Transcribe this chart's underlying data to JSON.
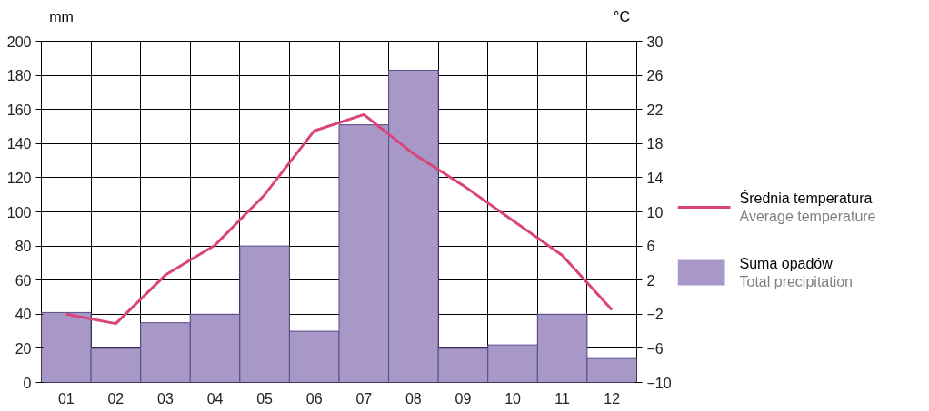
{
  "chart_data": {
    "type": "bar",
    "ylabel": "mm",
    "y2label": "°C",
    "categories": [
      "01",
      "02",
      "03",
      "04",
      "05",
      "06",
      "07",
      "08",
      "09",
      "10",
      "11",
      "12"
    ],
    "series": [
      {
        "name": "Suma opadów\nTotal precipitation",
        "color": "#a898c8",
        "values": [
          41,
          20,
          35,
          40,
          80,
          30,
          151,
          183,
          20,
          22,
          40,
          14
        ]
      },
      {
        "name": "Średnia temperatura\nAverage temperature",
        "type": "line",
        "axis": "y2",
        "color": "#d9457a",
        "values": [
          -2,
          -3.1,
          2.6,
          6.1,
          12,
          19.5,
          21.4,
          16.8,
          13.1,
          9,
          4.9,
          -1.5
        ]
      }
    ],
    "ylim": [
      0,
      200
    ],
    "yticks": [
      0,
      20,
      40,
      60,
      80,
      100,
      120,
      140,
      160,
      180,
      200
    ],
    "y2lim": [
      -10,
      30
    ],
    "y2ticks": [
      -10,
      -6,
      -2,
      2,
      6,
      10,
      14,
      18,
      22,
      26,
      30
    ],
    "grid": true,
    "legend": "right",
    "marker": "none",
    "line_style": "solid"
  }
}
